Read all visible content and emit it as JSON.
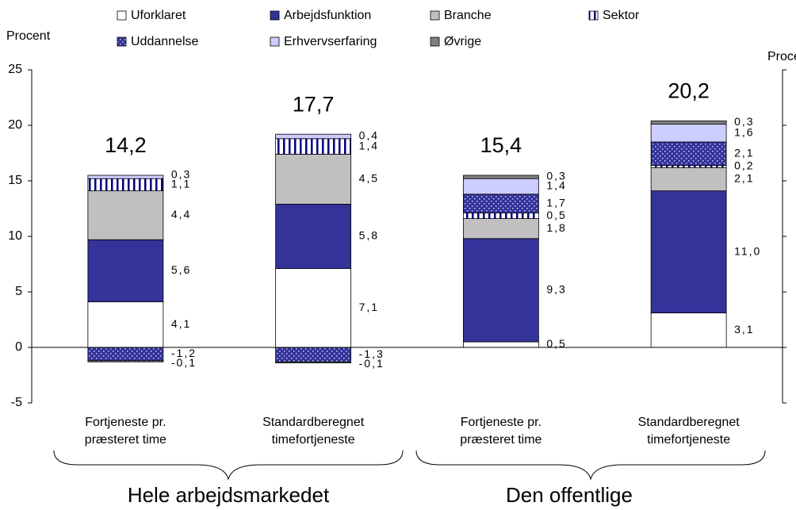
{
  "chart_data": {
    "type": "stacked-bar",
    "y_label": "Procent",
    "y2_label": "Procent",
    "categories": [
      "Fortjeneste pr.\npræsteret time",
      "Standardberegnet\ntimefortjeneste",
      "Fortjeneste pr.\npræsteret time",
      "Standardberegnet\ntimefortjeneste"
    ],
    "groups": [
      "Hele arbejdsmarkedet",
      "Den offentlige"
    ],
    "series": [
      {
        "name": "Uforklaret",
        "color": "#ffffff",
        "values": [
          4.1,
          7.1,
          0.5,
          3.1
        ],
        "value_labels": [
          "4,1",
          "7,1",
          "0,5",
          "3,1"
        ]
      },
      {
        "name": "Arbejdsfunktion",
        "color": "#333399",
        "values": [
          5.6,
          5.8,
          9.3,
          11.0
        ],
        "value_labels": [
          "5,6",
          "5,8",
          "9,3",
          "11,0"
        ]
      },
      {
        "name": "Branche",
        "color": "#c0c0c0",
        "values": [
          4.4,
          4.5,
          1.8,
          2.1
        ],
        "value_labels": [
          "4,4",
          "4,5",
          "1,8",
          "2,1"
        ]
      },
      {
        "name": "Sektor",
        "color": "#000080",
        "pattern": "vertical-lines",
        "values": [
          1.1,
          1.4,
          0.5,
          0.2
        ],
        "value_labels": [
          "1,1",
          "1,4",
          "0,5",
          "0,2"
        ]
      },
      {
        "name": "Uddannelse",
        "color": "#333399",
        "pattern": "dots",
        "values": [
          -1.2,
          -1.3,
          1.7,
          2.1
        ],
        "value_labels": [
          "-1,2",
          "-1,3",
          "1,7",
          "2,1"
        ]
      },
      {
        "name": "Erhvervserfaring",
        "color": "#ccccff",
        "values": [
          0.3,
          0.4,
          1.4,
          1.6
        ],
        "value_labels": [
          "0,3",
          "0,4",
          "1,4",
          "1,6"
        ]
      },
      {
        "name": "Øvrige",
        "color": "#808080",
        "values": [
          -0.1,
          -0.1,
          0.3,
          0.3
        ],
        "value_labels": [
          "-0,1",
          "-0,1",
          "0,3",
          "0,3"
        ]
      }
    ],
    "totals": [
      14.2,
      17.7,
      15.4,
      20.2
    ],
    "total_labels": [
      "14,2",
      "17,7",
      "15,4",
      "20,2"
    ],
    "ylim": [
      -5,
      25
    ],
    "yticks": [
      -5,
      0,
      5,
      10,
      15,
      20,
      25
    ]
  }
}
